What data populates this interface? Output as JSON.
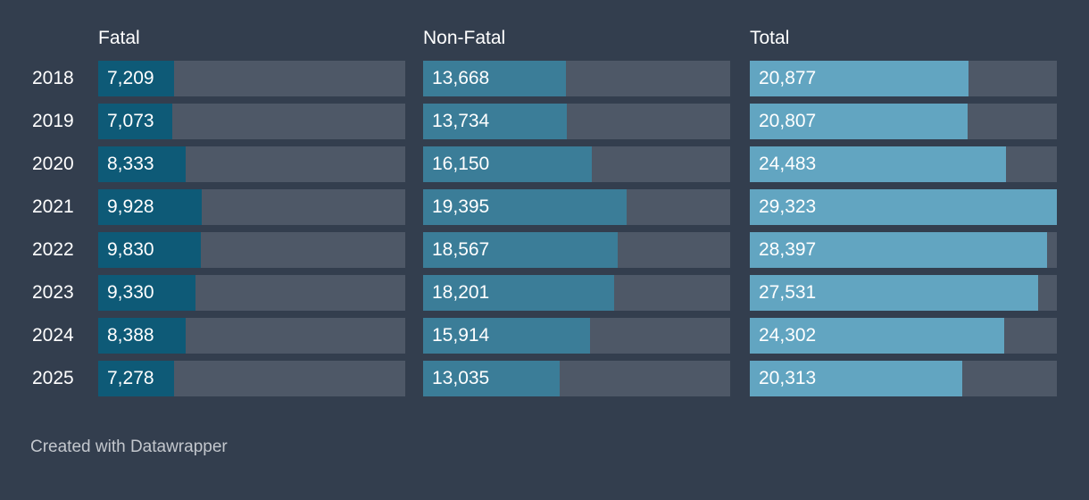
{
  "chart_data": {
    "type": "bar",
    "orientation": "horizontal",
    "categories": [
      "2018",
      "2019",
      "2020",
      "2021",
      "2022",
      "2023",
      "2024",
      "2025"
    ],
    "series": [
      {
        "name": "Fatal",
        "color": "#0e5a77",
        "values": [
          7209,
          7073,
          8333,
          9928,
          9830,
          9330,
          8388,
          7278
        ],
        "labels": [
          "7,209",
          "7,073",
          "8,333",
          "9,928",
          "9,830",
          "9,330",
          "8,388",
          "7,278"
        ]
      },
      {
        "name": "Non-Fatal",
        "color": "#3b7d98",
        "values": [
          13668,
          13734,
          16150,
          19395,
          18567,
          18201,
          15914,
          13035
        ],
        "labels": [
          "13,668",
          "13,734",
          "16,150",
          "19,395",
          "18,567",
          "18,201",
          "15,914",
          "13,035"
        ]
      },
      {
        "name": "Total",
        "color": "#62a5c1",
        "values": [
          20877,
          20807,
          24483,
          29323,
          28397,
          27531,
          24302,
          20313
        ],
        "labels": [
          "20,877",
          "20,807",
          "24,483",
          "29,323",
          "28,397",
          "27,531",
          "24,302",
          "20,313"
        ]
      }
    ],
    "xlim": [
      0,
      29323
    ],
    "track_color": "#4e5867",
    "background": "#333e4e",
    "grid": false,
    "legend": "none"
  },
  "footer": {
    "credit": "Created with Datawrapper"
  }
}
